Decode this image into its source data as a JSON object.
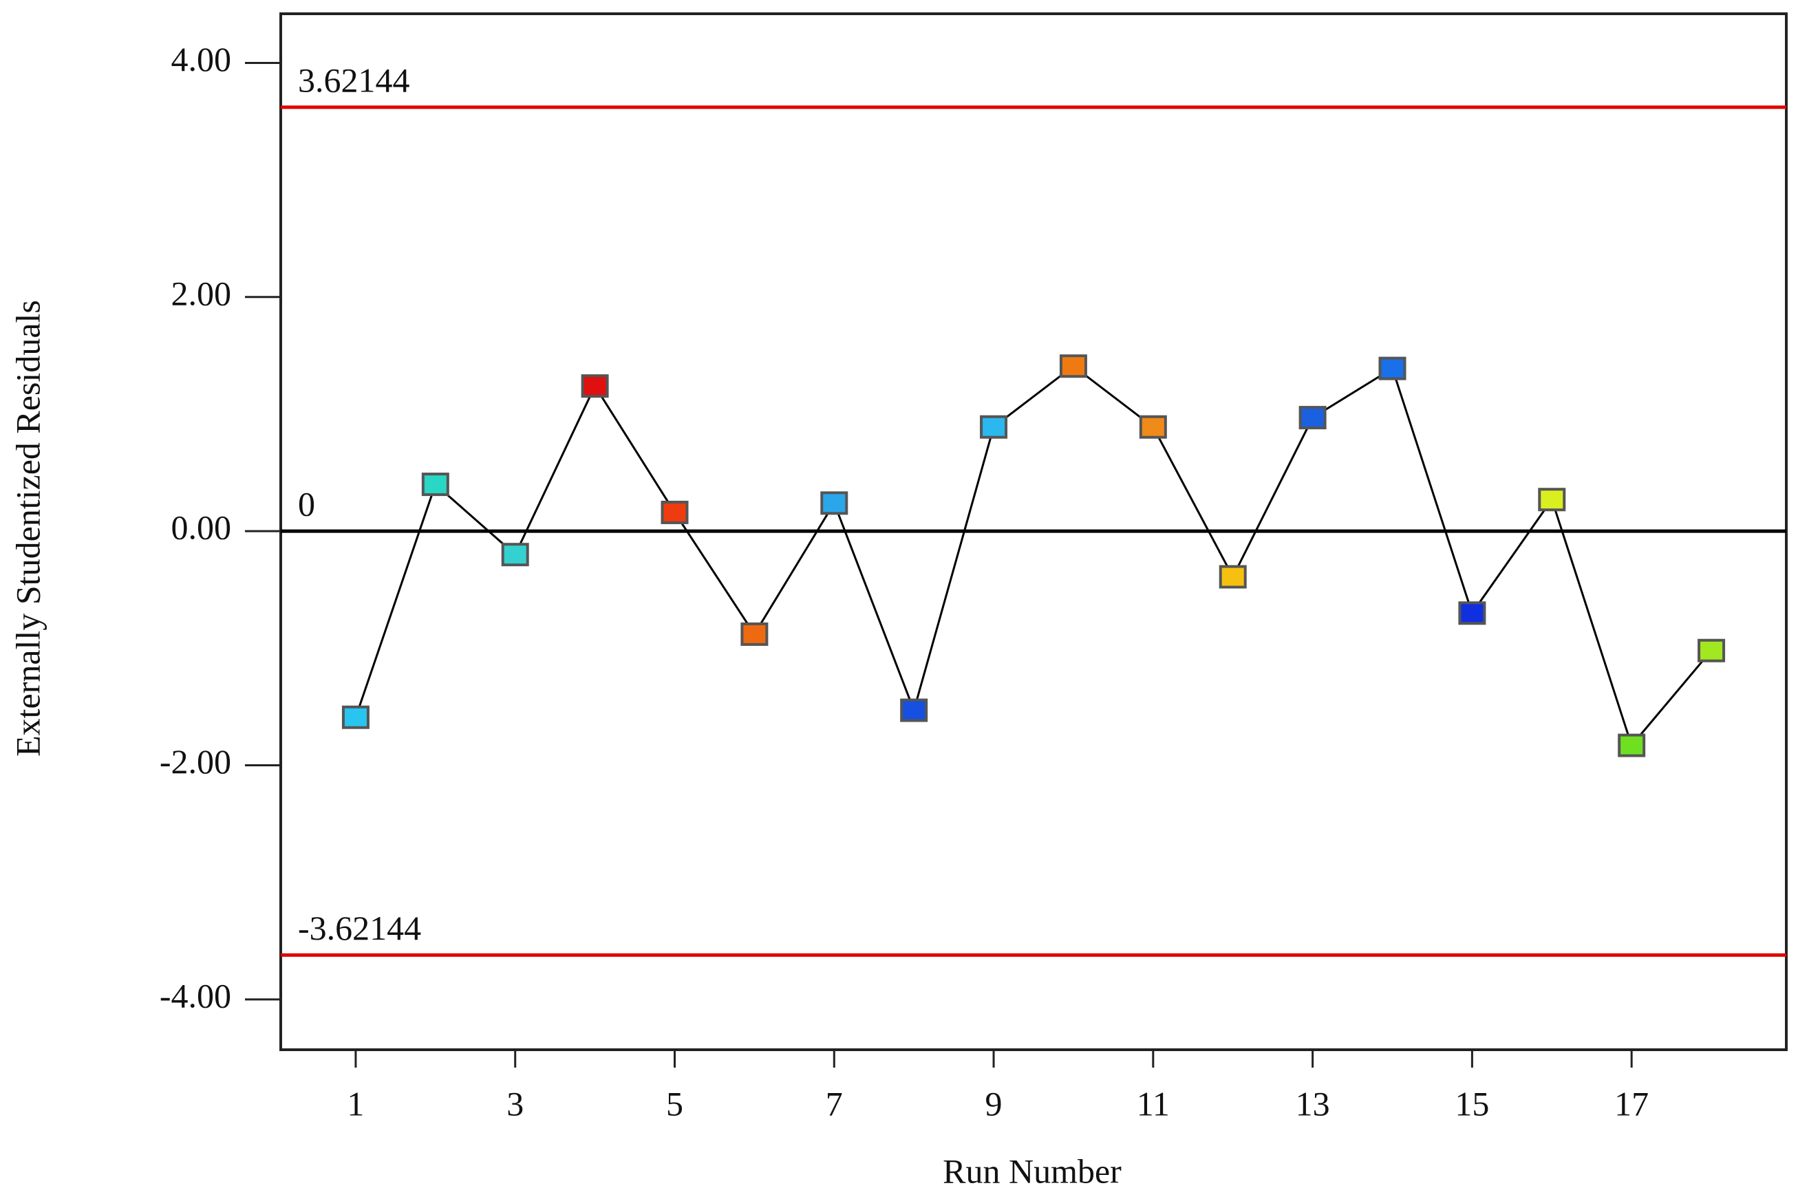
{
  "chart_data": {
    "type": "line",
    "y_label": "Externally Studentized Residuals",
    "x_label": "Run Number",
    "x": [
      1,
      2,
      3,
      4,
      5,
      6,
      7,
      8,
      9,
      10,
      11,
      12,
      13,
      14,
      15,
      16,
      17,
      18
    ],
    "series": [
      {
        "color": "#000000",
        "values": [
          -1.59,
          0.4,
          -0.2,
          1.24,
          0.16,
          -0.88,
          0.24,
          -1.53,
          0.89,
          1.41,
          0.89,
          -0.39,
          0.97,
          1.39,
          -0.7,
          0.27,
          -1.83,
          -1.02
        ],
        "marker_colors": [
          "#29c5f0",
          "#2ad6c4",
          "#33d1cf",
          "#e01010",
          "#ee3b10",
          "#ee6a10",
          "#2aa7ea",
          "#1550e0",
          "#2ab8ef",
          "#f07a12",
          "#f08a1a",
          "#f5c010",
          "#1a60e0",
          "#1a70e8",
          "#1030e0",
          "#d8ef20",
          "#6ee020",
          "#a2e820"
        ]
      }
    ],
    "xlim": [
      0.06,
      18.94
    ],
    "xticks": [
      1,
      3,
      5,
      7,
      9,
      11,
      13,
      15,
      17
    ],
    "ylim": [
      -4.43,
      4.42
    ],
    "yticks": [
      {
        "value": -4,
        "label": "-4.00"
      },
      {
        "value": -2,
        "label": "-2.00"
      },
      {
        "value": 0,
        "label": "0.00"
      },
      {
        "value": 2,
        "label": "2.00"
      },
      {
        "value": 4,
        "label": "4.00"
      }
    ],
    "reference_lines": [
      {
        "value": 3.62144,
        "color": "#e00000"
      },
      {
        "value": 0,
        "color": "#000000"
      },
      {
        "value": -3.62144,
        "color": "#e00000"
      }
    ]
  }
}
